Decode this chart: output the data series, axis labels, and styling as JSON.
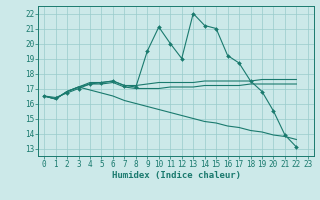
{
  "title": "",
  "xlabel": "Humidex (Indice chaleur)",
  "xlim": [
    -0.5,
    23.5
  ],
  "ylim": [
    12.5,
    22.5
  ],
  "yticks": [
    13,
    14,
    15,
    16,
    17,
    18,
    19,
    20,
    21,
    22
  ],
  "xticks": [
    0,
    1,
    2,
    3,
    4,
    5,
    6,
    7,
    8,
    9,
    10,
    11,
    12,
    13,
    14,
    15,
    16,
    17,
    18,
    19,
    20,
    21,
    22,
    23
  ],
  "bg_color": "#cce9e9",
  "grid_color": "#99cccc",
  "line_color": "#1a7a6e",
  "series": [
    [
      16.5,
      16.4,
      16.7,
      17.0,
      17.3,
      17.4,
      17.5,
      17.2,
      17.1,
      19.5,
      21.1,
      20.0,
      19.0,
      22.0,
      21.2,
      21.0,
      19.2,
      18.7,
      17.5,
      16.8,
      15.5,
      13.9,
      13.1
    ],
    [
      16.5,
      16.3,
      16.8,
      17.1,
      17.4,
      17.4,
      17.5,
      17.2,
      17.2,
      17.3,
      17.4,
      17.4,
      17.4,
      17.4,
      17.5,
      17.5,
      17.5,
      17.5,
      17.5,
      17.6,
      17.6,
      17.6,
      17.6
    ],
    [
      16.5,
      16.3,
      16.8,
      17.1,
      17.3,
      17.3,
      17.4,
      17.1,
      17.0,
      17.0,
      17.0,
      17.1,
      17.1,
      17.1,
      17.2,
      17.2,
      17.2,
      17.2,
      17.3,
      17.3,
      17.3,
      17.3,
      17.3
    ],
    [
      16.5,
      16.3,
      16.8,
      17.1,
      16.9,
      16.7,
      16.5,
      16.2,
      16.0,
      15.8,
      15.6,
      15.4,
      15.2,
      15.0,
      14.8,
      14.7,
      14.5,
      14.4,
      14.2,
      14.1,
      13.9,
      13.8,
      13.6
    ]
  ],
  "series_x": [
    0,
    1,
    2,
    3,
    4,
    5,
    6,
    7,
    8,
    9,
    10,
    11,
    12,
    13,
    14,
    15,
    16,
    17,
    18,
    19,
    20,
    21,
    22
  ],
  "tick_fontsize": 5.5,
  "xlabel_fontsize": 6.5
}
